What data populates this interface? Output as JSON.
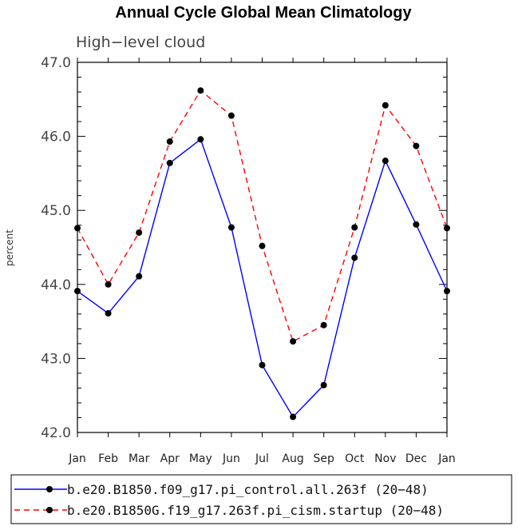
{
  "chart_data": {
    "type": "line",
    "title": "Annual Cycle Global Mean Climatology",
    "subtitle": "High−level cloud",
    "xlabel": "",
    "ylabel": "percent",
    "categories": [
      "Jan",
      "Feb",
      "Mar",
      "Apr",
      "May",
      "Jun",
      "Jul",
      "Aug",
      "Sep",
      "Oct",
      "Nov",
      "Dec",
      "Jan"
    ],
    "ylim": [
      42.0,
      47.0
    ],
    "yticks": [
      42.0,
      43.0,
      44.0,
      45.0,
      46.0,
      47.0
    ],
    "ytick_labels": [
      "42.0",
      "43.0",
      "44.0",
      "45.0",
      "46.0",
      "47.0"
    ],
    "legend_position": "bottom",
    "series": [
      {
        "name": "b.e20.B1850.f09_g17.pi_control.all.263f (20−48)",
        "color": "#0000ff",
        "dash": "solid",
        "values": [
          43.91,
          43.61,
          44.11,
          45.64,
          45.96,
          44.77,
          42.91,
          42.21,
          42.64,
          44.36,
          45.67,
          44.81,
          43.91
        ]
      },
      {
        "name": "b.e20.B1850G.f19_g17.263f.pi_cism.startup (20−48)",
        "color": "#ff0000",
        "dash": "dashed",
        "values": [
          44.76,
          44.0,
          44.7,
          45.93,
          46.62,
          46.28,
          44.52,
          43.23,
          43.45,
          44.77,
          46.42,
          45.87,
          44.76
        ]
      }
    ]
  }
}
